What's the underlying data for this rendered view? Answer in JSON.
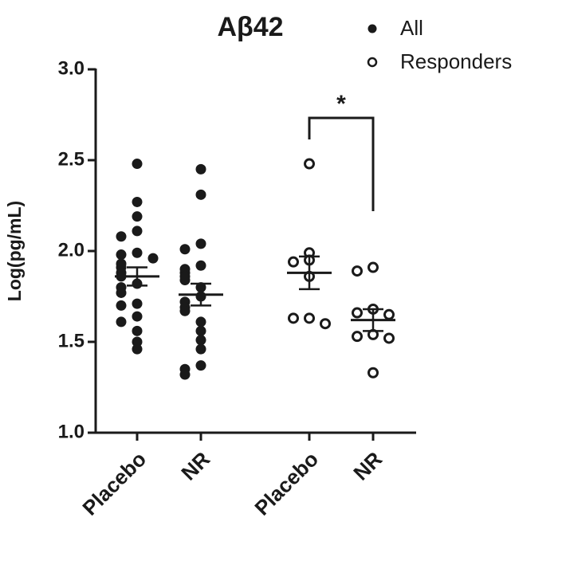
{
  "chart_data": {
    "type": "strip",
    "title": "Aβ42",
    "y_label": "Log(pg/mL)",
    "categories": [
      "Placebo",
      "NR",
      "Placebo",
      "NR"
    ],
    "ylim": [
      1.0,
      3.0
    ],
    "yticks": [
      {
        "value": 1.0,
        "label": "1.0"
      },
      {
        "value": 1.5,
        "label": "1.5"
      },
      {
        "value": 2.0,
        "label": "2.0"
      },
      {
        "value": 2.5,
        "label": "2.5"
      },
      {
        "value": 3.0,
        "label": "3.0"
      }
    ],
    "series": [
      {
        "name": "All",
        "color": "#1a1a1a",
        "marker": "filled",
        "values": [
          [
            2.48,
            2.27,
            2.19,
            2.11,
            2.08,
            1.99,
            1.98,
            1.96,
            1.93,
            1.91,
            1.88,
            1.86,
            1.82,
            1.8,
            1.77,
            1.71,
            1.7,
            1.64,
            1.61,
            1.56,
            1.5,
            1.46
          ],
          [
            2.45,
            2.31,
            2.04,
            2.01,
            1.92,
            1.9,
            1.88,
            1.86,
            1.84,
            1.8,
            1.75,
            1.72,
            1.69,
            1.67,
            1.61,
            1.56,
            1.51,
            1.46,
            1.37,
            1.35,
            1.32
          ],
          null,
          null
        ],
        "mean": [
          1.86,
          1.76,
          null,
          null
        ],
        "sem": [
          0.05,
          0.06,
          null,
          null
        ]
      },
      {
        "name": "Responders",
        "color": "#1a1a1a",
        "marker": "open",
        "values": [
          null,
          null,
          [
            2.48,
            1.99,
            1.95,
            1.94,
            1.86,
            1.63,
            1.63,
            1.6
          ],
          [
            1.91,
            1.89,
            1.68,
            1.66,
            1.65,
            1.54,
            1.53,
            1.52,
            1.33
          ]
        ],
        "mean": [
          null,
          null,
          1.88,
          1.62
        ],
        "sem": [
          null,
          null,
          0.09,
          0.06
        ]
      }
    ],
    "annotations": [
      {
        "text": "*"
      }
    ],
    "legend": "top-right"
  }
}
